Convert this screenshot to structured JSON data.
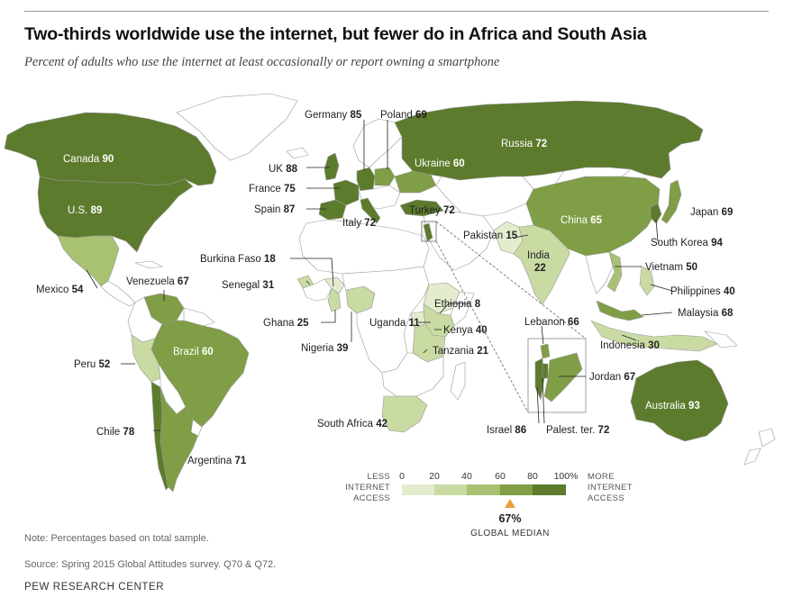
{
  "title": "Two-thirds worldwide use the internet, but fewer do in Africa and South Asia",
  "subtitle": "Percent of adults who use the internet at least occasionally or report owning a smartphone",
  "colors": {
    "scale": [
      "#e3eccd",
      "#c9dba3",
      "#a8c172",
      "#7f9e45",
      "#5d7b2d"
    ],
    "no_data": "#ffffff",
    "border": "#9a9a9a",
    "median_marker": "#e8a13a"
  },
  "countries": [
    {
      "name": "Canada",
      "value": "90"
    },
    {
      "name": "U.S.",
      "value": "89"
    },
    {
      "name": "Mexico",
      "value": "54"
    },
    {
      "name": "Venezuela",
      "value": "67"
    },
    {
      "name": "Brazil",
      "value": "60"
    },
    {
      "name": "Peru",
      "value": "52"
    },
    {
      "name": "Chile",
      "value": "78"
    },
    {
      "name": "Argentina",
      "value": "71"
    },
    {
      "name": "Germany",
      "value": "85"
    },
    {
      "name": "Poland",
      "value": "69"
    },
    {
      "name": "UK",
      "value": "88"
    },
    {
      "name": "France",
      "value": "75"
    },
    {
      "name": "Spain",
      "value": "87"
    },
    {
      "name": "Italy",
      "value": "72"
    },
    {
      "name": "Russia",
      "value": "72"
    },
    {
      "name": "Ukraine",
      "value": "60"
    },
    {
      "name": "Turkey",
      "value": "72"
    },
    {
      "name": "Burkina Faso",
      "value": "18"
    },
    {
      "name": "Senegal",
      "value": "31"
    },
    {
      "name": "Ghana",
      "value": "25"
    },
    {
      "name": "Nigeria",
      "value": "39"
    },
    {
      "name": "Uganda",
      "value": "11"
    },
    {
      "name": "Ethiopia",
      "value": "8"
    },
    {
      "name": "Kenya",
      "value": "40"
    },
    {
      "name": "Tanzania",
      "value": "21"
    },
    {
      "name": "South Africa",
      "value": "42"
    },
    {
      "name": "Pakistan",
      "value": "15"
    },
    {
      "name": "India",
      "value": "22"
    },
    {
      "name": "China",
      "value": "65"
    },
    {
      "name": "Japan",
      "value": "69"
    },
    {
      "name": "South Korea",
      "value": "94"
    },
    {
      "name": "Vietnam",
      "value": "50"
    },
    {
      "name": "Philippines",
      "value": "40"
    },
    {
      "name": "Malaysia",
      "value": "68"
    },
    {
      "name": "Indonesia",
      "value": "30"
    },
    {
      "name": "Australia",
      "value": "93"
    },
    {
      "name": "Lebanon",
      "value": "66"
    },
    {
      "name": "Jordan",
      "value": "67"
    },
    {
      "name": "Israel",
      "value": "86"
    },
    {
      "name": "Palest. ter.",
      "value": "72"
    }
  ],
  "legend": {
    "ticks": [
      "0",
      "20",
      "40",
      "60",
      "80",
      "100%"
    ],
    "less_line1": "LESS",
    "less_line2": "INTERNET",
    "less_line3": "ACCESS",
    "more_line1": "MORE",
    "more_line2": "INTERNET",
    "more_line3": "ACCESS",
    "median_value": "67%",
    "median_label": "GLOBAL MEDIAN"
  },
  "note": "Note: Percentages based on total sample.",
  "source": "Source: Spring 2015 Global Attitudes survey. Q70 & Q72.",
  "org": "PEW RESEARCH CENTER"
}
